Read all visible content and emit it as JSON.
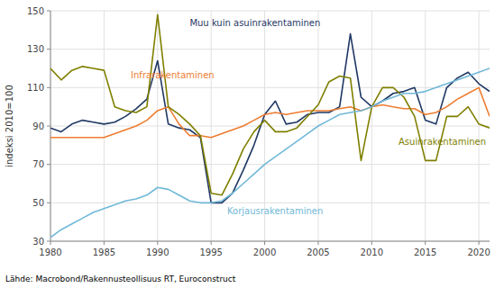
{
  "chart_data": {
    "type": "line",
    "ylabel": "indeksi 2010=100",
    "footnote": "Lähde: Macrobond/Rakennusteollisuus RT, Euroconstruct",
    "x": [
      1980,
      1981,
      1982,
      1983,
      1984,
      1985,
      1986,
      1987,
      1988,
      1989,
      1990,
      1991,
      1992,
      1993,
      1994,
      1995,
      1996,
      1997,
      1998,
      1999,
      2000,
      2001,
      2002,
      2003,
      2004,
      2005,
      2006,
      2007,
      2008,
      2009,
      2010,
      2011,
      2012,
      2013,
      2014,
      2015,
      2016,
      2017,
      2018,
      2019,
      2020,
      2021
    ],
    "series": [
      {
        "color": "#1f3864",
        "values": [
          89,
          87,
          91,
          93,
          92,
          91,
          92,
          95,
          99,
          104,
          124,
          91,
          89,
          88,
          84,
          50,
          50,
          55,
          67,
          80,
          96,
          103,
          91,
          92,
          96,
          97,
          97,
          100,
          138,
          105,
          100,
          103,
          107,
          108,
          110,
          93,
          91,
          110,
          115,
          118,
          112,
          108
        ]
      },
      {
        "color": "#ed7d31",
        "values": [
          84,
          84,
          84,
          84,
          84,
          84,
          86,
          88,
          90,
          93,
          98,
          100,
          91,
          85,
          85,
          84,
          86,
          88,
          90,
          93,
          96,
          97,
          96,
          97,
          98,
          98,
          98,
          99,
          100,
          98,
          100,
          101,
          100,
          99,
          99,
          96,
          97,
          100,
          104,
          107,
          110,
          95
        ]
      },
      {
        "color": "#7f7f00",
        "values": [
          120,
          114,
          119,
          121,
          120,
          119,
          100,
          98,
          97,
          100,
          148,
          100,
          96,
          91,
          85,
          55,
          54,
          65,
          78,
          87,
          93,
          87,
          87,
          89,
          95,
          101,
          113,
          116,
          115,
          72,
          100,
          110,
          110,
          105,
          95,
          72,
          72,
          95,
          95,
          100,
          91,
          89
        ]
      },
      {
        "color": "#70b8d8",
        "values": [
          32,
          36,
          39,
          42,
          45,
          47,
          49,
          51,
          52,
          54,
          58,
          57,
          54,
          51,
          50,
          50,
          51,
          55,
          60,
          65,
          70,
          74,
          78,
          82,
          86,
          90,
          93,
          96,
          97,
          98,
          100,
          103,
          105,
          107,
          107,
          108,
          110,
          112,
          114,
          116,
          118,
          120
        ]
      }
    ],
    "annotations": [
      {
        "x": 1993.0,
        "y": 141,
        "text": "Muu kuin asuinrakentaminen",
        "color": "#1f3864"
      },
      {
        "x": 1987.5,
        "y": 114,
        "text": "Infrarakentaminen",
        "color": "#ed7d31"
      },
      {
        "x": 2012.5,
        "y": 79,
        "text": "Asuinrakentaminen",
        "color": "#7f7f00"
      },
      {
        "x": 1996.5,
        "y": 43,
        "text": "Korjausrakentaminen",
        "color": "#70b8d8"
      }
    ],
    "xlim": [
      1980,
      2021
    ],
    "ylim": [
      30,
      150
    ],
    "yticks": [
      30,
      50,
      70,
      90,
      110,
      130,
      150
    ],
    "xticks": [
      1980,
      1985,
      1990,
      1995,
      2000,
      2005,
      2010,
      2015,
      2020
    ],
    "grid": true
  }
}
